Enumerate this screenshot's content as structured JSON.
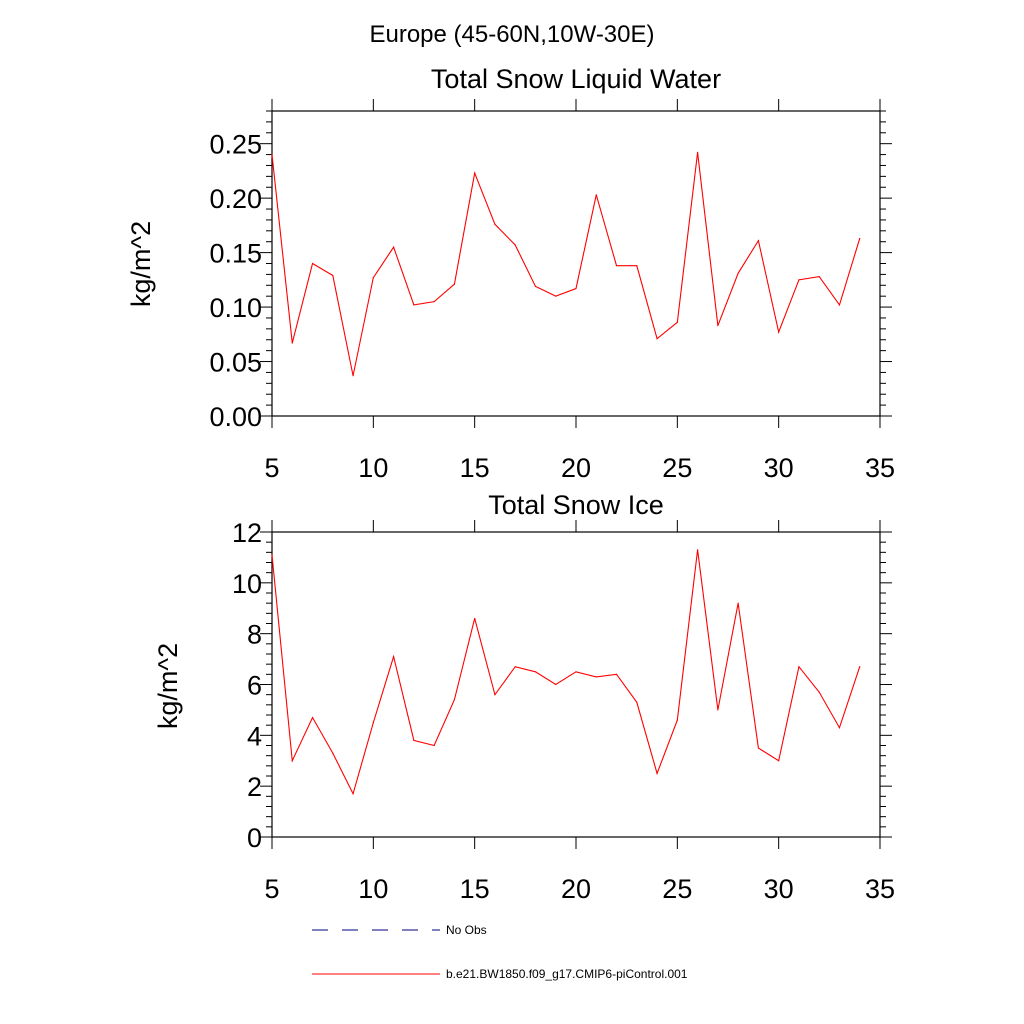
{
  "figure": {
    "supertitle": "Europe (45-60N,10W-30E)"
  },
  "chart_data": [
    {
      "type": "line",
      "title": "Total Snow Liquid Water",
      "xlabel": "",
      "ylabel": "kg/m^2",
      "xlim": [
        5,
        35
      ],
      "ylim": [
        0,
        0.28
      ],
      "xticks": [
        5,
        10,
        15,
        20,
        25,
        30,
        35
      ],
      "xtick_labels": [
        "5",
        "10",
        "15",
        "20",
        "25",
        "30",
        "35"
      ],
      "yticks": [
        0,
        0.05,
        0.1,
        0.15,
        0.2,
        0.25
      ],
      "ytick_labels": [
        "0.00",
        "0.05",
        "0.10",
        "0.15",
        "0.20",
        "0.25"
      ],
      "x": [
        5,
        6,
        7,
        8,
        9,
        10,
        11,
        12,
        13,
        14,
        15,
        16,
        17,
        18,
        19,
        20,
        21,
        22,
        23,
        24,
        25,
        26,
        27,
        28,
        29,
        30,
        31,
        32,
        33,
        34
      ],
      "series": [
        {
          "name": "b.e21.BW1850.f09_g17.CMIP6-piControl.001",
          "color": "#ff0000",
          "values": [
            0.24,
            0.067,
            0.14,
            0.129,
            0.037,
            0.127,
            0.155,
            0.102,
            0.105,
            0.121,
            0.223,
            0.176,
            0.157,
            0.119,
            0.11,
            0.117,
            0.203,
            0.138,
            0.138,
            0.071,
            0.086,
            0.242,
            0.083,
            0.131,
            0.161,
            0.077,
            0.125,
            0.128,
            0.102,
            0.163
          ]
        }
      ]
    },
    {
      "type": "line",
      "title": "Total Snow Ice",
      "xlabel": "",
      "ylabel": "kg/m^2",
      "xlim": [
        5,
        35
      ],
      "ylim": [
        0,
        12
      ],
      "xticks": [
        5,
        10,
        15,
        20,
        25,
        30,
        35
      ],
      "xtick_labels": [
        "5",
        "10",
        "15",
        "20",
        "25",
        "30",
        "35"
      ],
      "yticks": [
        0,
        2,
        4,
        6,
        8,
        10,
        12
      ],
      "ytick_labels": [
        "0",
        "2",
        "4",
        "6",
        "8",
        "10",
        "12"
      ],
      "x": [
        5,
        6,
        7,
        8,
        9,
        10,
        11,
        12,
        13,
        14,
        15,
        16,
        17,
        18,
        19,
        20,
        21,
        22,
        23,
        24,
        25,
        26,
        27,
        28,
        29,
        30,
        31,
        32,
        33,
        34
      ],
      "series": [
        {
          "name": "b.e21.BW1850.f09_g17.CMIP6-piControl.001",
          "color": "#ff0000",
          "values": [
            11.1,
            3.0,
            4.7,
            3.3,
            1.7,
            4.5,
            7.1,
            3.8,
            3.6,
            5.4,
            8.6,
            5.6,
            6.7,
            6.5,
            6.0,
            6.5,
            6.3,
            6.4,
            5.3,
            2.5,
            4.6,
            11.3,
            5.0,
            9.2,
            3.5,
            3.0,
            6.7,
            5.7,
            4.3,
            6.7
          ]
        }
      ]
    }
  ],
  "legend": {
    "items": [
      {
        "label": "No Obs",
        "color": "#000080",
        "style": "dashed"
      },
      {
        "label": "b.e21.BW1850.f09_g17.CMIP6-piControl.001",
        "color": "#ff0000",
        "style": "solid"
      }
    ]
  }
}
